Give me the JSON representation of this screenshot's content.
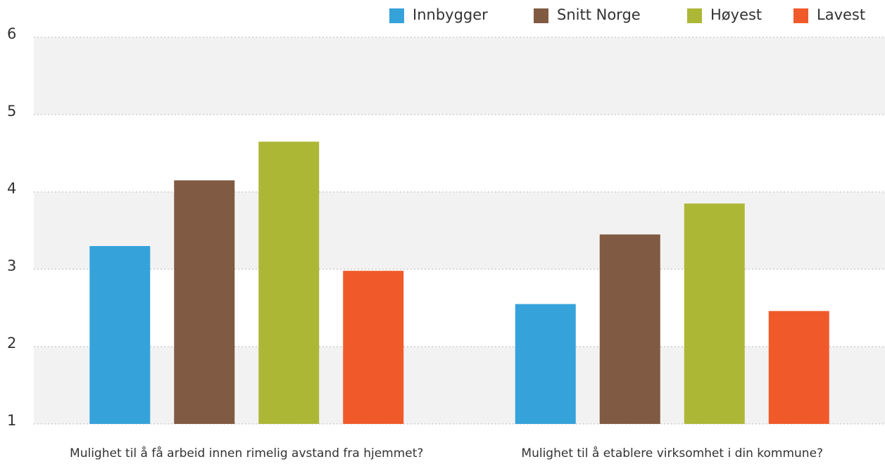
{
  "chart_data": {
    "type": "bar",
    "categories": [
      "Mulighet til å få arbeid innen rimelig avstand fra hjemmet?",
      "Mulighet til å etablere virksomhet i din kommune?"
    ],
    "series": [
      {
        "name": "Innbygger",
        "color": "#36a2da",
        "values": [
          3.3,
          2.55
        ]
      },
      {
        "name": "Snitt Norge",
        "color": "#805a42",
        "values": [
          4.15,
          3.45
        ]
      },
      {
        "name": "Høyest",
        "color": "#adb736",
        "values": [
          4.65,
          3.85
        ]
      },
      {
        "name": "Lavest",
        "color": "#f05a2a",
        "values": [
          2.98,
          2.46
        ]
      }
    ],
    "ylim": [
      1,
      6
    ],
    "yticks": [
      1,
      2,
      3,
      4,
      5,
      6
    ],
    "grid": true,
    "legend": "top-right"
  }
}
